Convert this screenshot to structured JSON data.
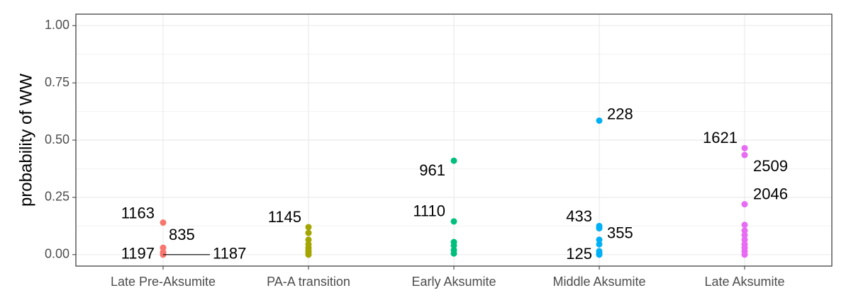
{
  "chart_data": {
    "type": "strip",
    "ylabel": "probability of WW",
    "categories": [
      "Late Pre-Aksumite",
      "PA-A transition",
      "Early Aksumite",
      "Middle Aksumite",
      "Late Aksumite"
    ],
    "series": [
      {
        "color": "#F8766D",
        "values": [
          0.14,
          0.03,
          0.01,
          0.0
        ],
        "labels": [
          "1163",
          "835",
          "1197",
          "1187"
        ]
      },
      {
        "color": "#A3A500",
        "values": [
          0.12,
          0.095,
          0.065,
          0.045,
          0.03,
          0.02,
          0.01,
          0.0
        ],
        "labels": [
          "1145",
          null,
          null,
          null,
          null,
          null,
          null,
          null
        ]
      },
      {
        "color": "#00BF7D",
        "values": [
          0.41,
          0.145,
          0.055,
          0.04,
          0.02,
          0.005
        ],
        "labels": [
          "961",
          "1110",
          null,
          null,
          null,
          null
        ]
      },
      {
        "color": "#00B0F6",
        "values": [
          0.585,
          0.125,
          0.115,
          0.065,
          0.045,
          0.015,
          0.005,
          0.0
        ],
        "labels": [
          "228",
          "433",
          null,
          "355",
          null,
          null,
          "125",
          null
        ]
      },
      {
        "color": "#E76BF3",
        "values": [
          0.465,
          0.435,
          0.22,
          0.13,
          0.105,
          0.085,
          0.065,
          0.045,
          0.03,
          0.015,
          0.0
        ],
        "labels": [
          "1621",
          "2509",
          "2046",
          null,
          null,
          null,
          null,
          null,
          null,
          null,
          null
        ]
      }
    ],
    "ylim": [
      -0.05,
      1.05
    ],
    "yticks": [
      {
        "value": 0,
        "label": "0.00"
      },
      {
        "value": 0.25,
        "label": "0.25"
      },
      {
        "value": 0.5,
        "label": "0.50"
      },
      {
        "value": 0.75,
        "label": "0.75"
      },
      {
        "value": 1,
        "label": "1.00"
      }
    ],
    "grid": true
  }
}
